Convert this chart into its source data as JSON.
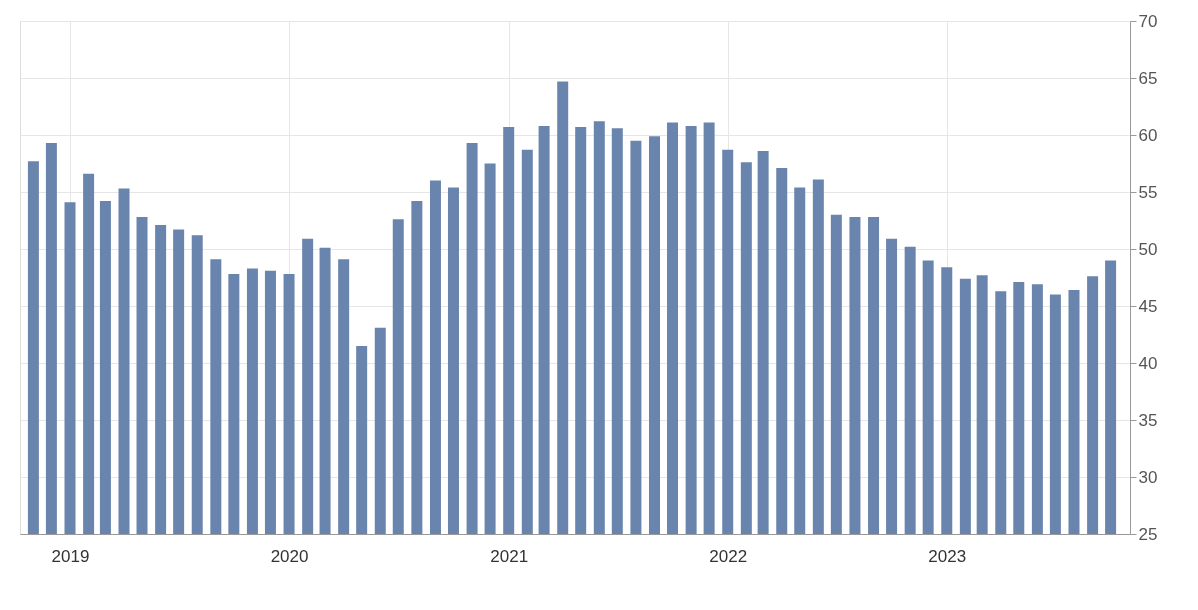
{
  "chart_data": {
    "type": "bar",
    "x": [
      "2018-11",
      "2018-12",
      "2019-01",
      "2019-02",
      "2019-03",
      "2019-04",
      "2019-05",
      "2019-06",
      "2019-07",
      "2019-08",
      "2019-09",
      "2019-10",
      "2019-11",
      "2019-12",
      "2020-01",
      "2020-02",
      "2020-03",
      "2020-04",
      "2020-05",
      "2020-06",
      "2020-07",
      "2020-08",
      "2020-09",
      "2020-10",
      "2020-11",
      "2020-12",
      "2021-01",
      "2021-02",
      "2021-03",
      "2021-04",
      "2021-05",
      "2021-06",
      "2021-07",
      "2021-08",
      "2021-09",
      "2021-10",
      "2021-11",
      "2021-12",
      "2022-01",
      "2022-02",
      "2022-03",
      "2022-04",
      "2022-05",
      "2022-06",
      "2022-07",
      "2022-08",
      "2022-09",
      "2022-10",
      "2022-11",
      "2022-12",
      "2023-01",
      "2023-02",
      "2023-03",
      "2023-04",
      "2023-05",
      "2023-06",
      "2023-07",
      "2023-08",
      "2023-09",
      "2023-10"
    ],
    "values": [
      57.7,
      59.3,
      54.1,
      56.6,
      54.2,
      55.3,
      52.8,
      52.1,
      51.7,
      51.2,
      49.1,
      47.8,
      48.3,
      48.1,
      47.8,
      50.9,
      50.1,
      49.1,
      41.5,
      43.1,
      52.6,
      54.2,
      56.0,
      55.4,
      59.3,
      57.5,
      60.7,
      58.7,
      60.8,
      64.7,
      60.7,
      61.2,
      60.6,
      59.5,
      59.9,
      61.1,
      60.8,
      61.1,
      58.7,
      57.6,
      58.6,
      57.1,
      55.4,
      56.1,
      53.0,
      52.8,
      52.8,
      50.9,
      50.2,
      49.0,
      48.4,
      47.4,
      47.7,
      46.3,
      47.1,
      46.9,
      46.0,
      46.4,
      47.6,
      49.0
    ],
    "color": "#6a85ad",
    "xlim": [
      "2018-10-18",
      "2023-10-25"
    ],
    "xticks": [
      {
        "value": "2019-01-01",
        "label": "2019"
      },
      {
        "value": "2020-01-01",
        "label": "2020"
      },
      {
        "value": "2021-01-01",
        "label": "2021"
      },
      {
        "value": "2022-01-01",
        "label": "2022"
      },
      {
        "value": "2023-01-01",
        "label": "2023"
      }
    ],
    "ylim": [
      25,
      70
    ],
    "yticks": [
      25,
      30,
      35,
      40,
      45,
      50,
      55,
      60,
      65,
      70
    ],
    "grid": true
  }
}
